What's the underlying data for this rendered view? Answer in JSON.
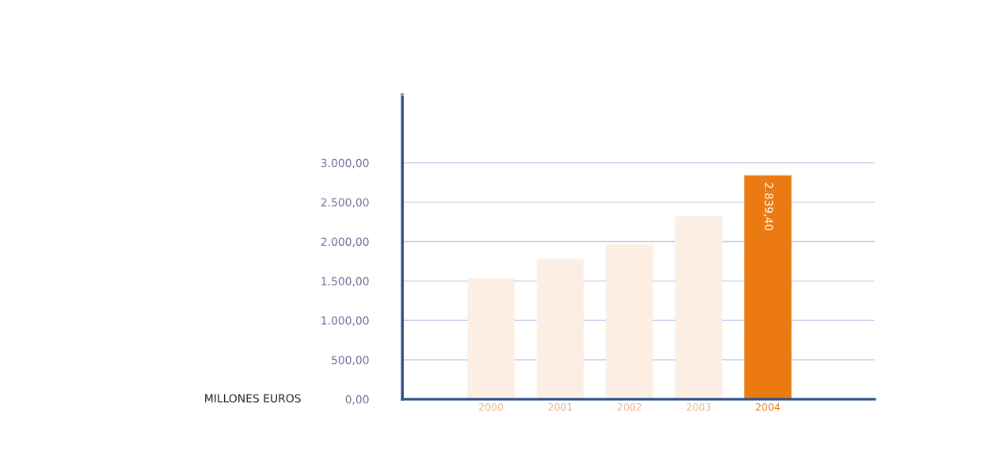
{
  "chart_data": {
    "type": "bar",
    "ylabel": "MILLONES EUROS",
    "categories": [
      "2000",
      "2001",
      "2002",
      "2003",
      "2004"
    ],
    "values": [
      1530,
      1780,
      1960,
      2320,
      2839.4
    ],
    "colors": [
      "#fdeee3",
      "#fdeee3",
      "#fdeee3",
      "#fdeee3",
      "#ec7a12"
    ],
    "value_labels": [
      null,
      null,
      null,
      null,
      "2.839,40"
    ],
    "ylim": [
      0,
      3860
    ],
    "yticks": [
      {
        "value": 0,
        "label": "0,00"
      },
      {
        "value": 500,
        "label": "500,00"
      },
      {
        "value": 1000,
        "label": "1.000,00"
      },
      {
        "value": 1500,
        "label": "1.500,00"
      },
      {
        "value": 2000,
        "label": "2.000,00"
      },
      {
        "value": 2500,
        "label": "2.500,00"
      },
      {
        "value": 3000,
        "label": "3.000,00"
      }
    ],
    "grid": "y"
  }
}
